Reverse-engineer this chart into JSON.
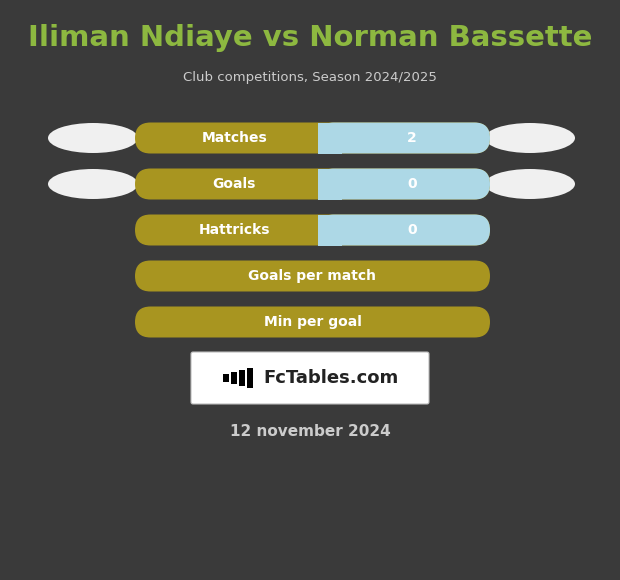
{
  "title": "Iliman Ndiaye vs Norman Bassette",
  "subtitle": "Club competitions, Season 2024/2025",
  "date_text": "12 november 2024",
  "background_color": "#3a3a3a",
  "title_color": "#8db840",
  "subtitle_color": "#cccccc",
  "date_color": "#cccccc",
  "rows": [
    {
      "label": "Matches",
      "value": "2",
      "has_value": true,
      "has_ellipse": true
    },
    {
      "label": "Goals",
      "value": "0",
      "has_value": true,
      "has_ellipse": true
    },
    {
      "label": "Hattricks",
      "value": "0",
      "has_value": true,
      "has_ellipse": false
    },
    {
      "label": "Goals per match",
      "value": "",
      "has_value": false,
      "has_ellipse": false
    },
    {
      "label": "Min per goal",
      "value": "",
      "has_value": false,
      "has_ellipse": false
    }
  ],
  "bar_golden_color": "#a89520",
  "bar_blue_color": "#add8e6",
  "bar_text_color": "#ffffff",
  "ellipse_color": "#f0f0f0",
  "fig_width": 6.2,
  "fig_height": 5.8,
  "dpi": 100
}
